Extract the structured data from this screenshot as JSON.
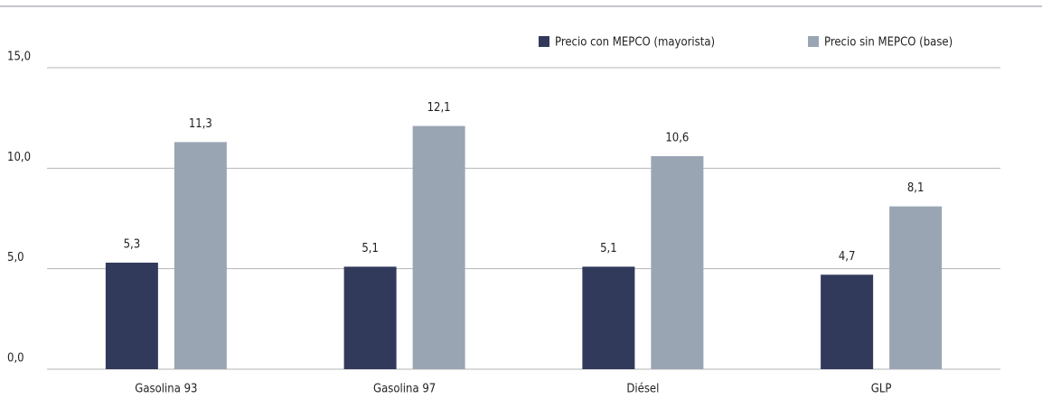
{
  "chart_data": {
    "type": "bar",
    "categories": [
      "Gasolina 93",
      "Gasolina 97",
      "Diésel",
      "GLP"
    ],
    "series": [
      {
        "name": "Precio con MEPCO (mayorista)",
        "color": "#323a5c",
        "values": [
          5.3,
          5.1,
          5.1,
          4.7
        ],
        "value_labels": [
          "5,3",
          "5,1",
          "5,1",
          "4,7"
        ]
      },
      {
        "name": "Precio sin MEPCO (base)",
        "color": "#9aa5b4",
        "values": [
          11.3,
          12.1,
          10.6,
          8.1
        ],
        "value_labels": [
          "11,3",
          "12,1",
          "10,6",
          "8,1"
        ]
      }
    ],
    "ylim": [
      0,
      15
    ],
    "yticks": [
      {
        "value": 0,
        "label": "0,0"
      },
      {
        "value": 5,
        "label": "5,0"
      },
      {
        "value": 10,
        "label": "10,0"
      },
      {
        "value": 15,
        "label": "15,0"
      }
    ],
    "grid": true,
    "legend": "top-right"
  }
}
